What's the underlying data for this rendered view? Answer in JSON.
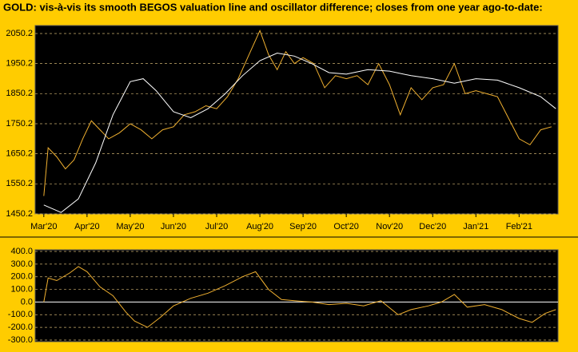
{
  "chart_data": [
    {
      "type": "line",
      "title": "GOLD:  vis-à-vis its smooth BEGOS valuation line and oscillator difference; closes from one year ago-to-date:",
      "xlim": [
        -0.2,
        11.9
      ],
      "xticks": [
        {
          "value": 0,
          "label": "Mar'20"
        },
        {
          "value": 1,
          "label": "Apr'20"
        },
        {
          "value": 2,
          "label": "May'20"
        },
        {
          "value": 3,
          "label": "Jun'20"
        },
        {
          "value": 4,
          "label": "Jul'20"
        },
        {
          "value": 5,
          "label": "Aug'20"
        },
        {
          "value": 6,
          "label": "Sep'20"
        },
        {
          "value": 7,
          "label": "Oct'20"
        },
        {
          "value": 8,
          "label": "Nov'20"
        },
        {
          "value": 9,
          "label": "Dec'20"
        },
        {
          "value": 10,
          "label": "Jan'21"
        },
        {
          "value": 11,
          "label": "Feb'21"
        }
      ],
      "ylim": [
        1450.2,
        2076.7
      ],
      "yticks": [
        1450.2,
        1550.2,
        1650.2,
        1750.2,
        1850.2,
        1950.2,
        2050.2
      ],
      "grid": true,
      "series": [
        {
          "color": "#f0b030",
          "x": [
            0,
            0.1,
            0.3,
            0.5,
            0.7,
            0.9,
            1.1,
            1.3,
            1.5,
            1.75,
            2,
            2.25,
            2.5,
            2.75,
            3,
            3.25,
            3.5,
            3.75,
            4,
            4.25,
            4.5,
            4.75,
            5,
            5.2,
            5.4,
            5.6,
            5.8,
            6,
            6.25,
            6.5,
            6.75,
            7,
            7.25,
            7.5,
            7.75,
            8,
            8.25,
            8.5,
            8.75,
            9,
            9.25,
            9.5,
            9.75,
            10,
            10.25,
            10.5,
            10.75,
            11,
            11.25,
            11.5,
            11.75
          ],
          "values": [
            1510,
            1670,
            1640,
            1600,
            1630,
            1700,
            1760,
            1730,
            1700,
            1720,
            1750,
            1730,
            1700,
            1730,
            1740,
            1780,
            1790,
            1810,
            1800,
            1840,
            1900,
            1980,
            2060,
            1980,
            1930,
            1990,
            1950,
            1970,
            1950,
            1870,
            1910,
            1900,
            1910,
            1880,
            1950,
            1880,
            1780,
            1870,
            1830,
            1870,
            1880,
            1950,
            1850,
            1860,
            1850,
            1840,
            1770,
            1700,
            1680,
            1730,
            1740
          ]
        },
        {
          "color": "#ffffff",
          "x": [
            0,
            0.4,
            0.8,
            1.2,
            1.6,
            2,
            2.3,
            2.6,
            3,
            3.4,
            3.8,
            4.2,
            4.6,
            5,
            5.4,
            5.8,
            6.2,
            6.6,
            7,
            7.5,
            8,
            8.5,
            9,
            9.5,
            10,
            10.5,
            11,
            11.5,
            11.85
          ],
          "values": [
            1480,
            1455,
            1500,
            1620,
            1780,
            1890,
            1900,
            1860,
            1790,
            1770,
            1800,
            1850,
            1910,
            1960,
            1985,
            1975,
            1950,
            1920,
            1915,
            1930,
            1925,
            1910,
            1900,
            1885,
            1900,
            1895,
            1870,
            1840,
            1800
          ]
        }
      ]
    },
    {
      "type": "line",
      "xlim": [
        -0.2,
        11.9
      ],
      "ylim": [
        -300,
        400
      ],
      "yticks": [
        {
          "value": 400,
          "label": "400.0"
        },
        {
          "value": 300,
          "label": "300.0"
        },
        {
          "value": 200,
          "label": "200.0"
        },
        {
          "value": 100,
          "label": "100.0"
        },
        {
          "value": 0,
          "label": "0.0"
        },
        {
          "value": -100,
          "label": "-100.0"
        },
        {
          "value": -200,
          "label": "-200.0"
        },
        {
          "value": -300,
          "label": "-300.0"
        }
      ],
      "grid": true,
      "series": [
        {
          "color": "#f0b030",
          "x": [
            0,
            0.1,
            0.3,
            0.6,
            0.8,
            1,
            1.3,
            1.6,
            1.9,
            2.1,
            2.4,
            2.7,
            3,
            3.4,
            3.8,
            4.2,
            4.6,
            4.9,
            5.2,
            5.5,
            5.8,
            6.2,
            6.6,
            7,
            7.4,
            7.8,
            8.2,
            8.5,
            8.9,
            9.2,
            9.5,
            9.8,
            10.2,
            10.6,
            11,
            11.3,
            11.6,
            11.85
          ],
          "values": [
            0,
            190,
            170,
            230,
            280,
            240,
            120,
            50,
            -80,
            -150,
            -200,
            -120,
            -30,
            30,
            70,
            130,
            200,
            240,
            100,
            20,
            10,
            0,
            -20,
            -10,
            -30,
            10,
            -100,
            -60,
            -30,
            0,
            60,
            -40,
            -20,
            -60,
            -130,
            -160,
            -90,
            -60
          ]
        }
      ]
    }
  ]
}
